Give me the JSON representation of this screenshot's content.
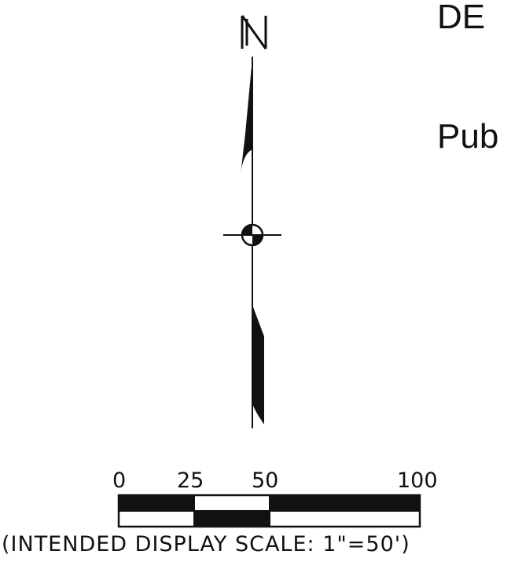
{
  "header_text_top": "DE",
  "header_text_mid": "Pub",
  "north_label": "N",
  "scale": {
    "ticks": [
      "0",
      "25",
      "50",
      "100"
    ],
    "caption": "(INTENDED DISPLAY SCALE: 1\"=50')"
  },
  "colors": {
    "ink": "#111111",
    "background": "#ffffff"
  }
}
